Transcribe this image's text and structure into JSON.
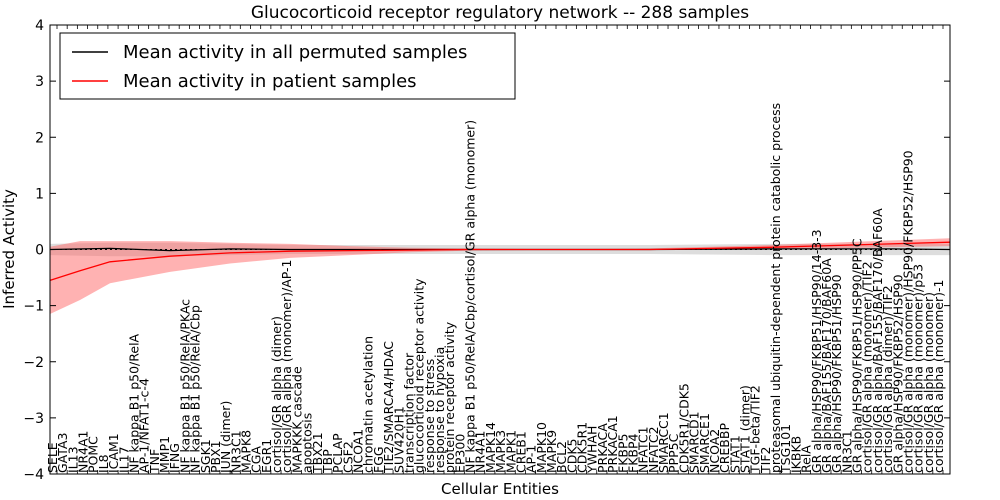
{
  "chart_data": {
    "type": "line",
    "title": "Glucocorticoid receptor regulatory network -- 288 samples",
    "xlabel": "Cellular Entities",
    "ylabel": "Inferred Activity",
    "ylim": [
      -4,
      4
    ],
    "yticks": [
      -4,
      -3,
      -2,
      -1,
      0,
      1,
      2,
      3,
      4
    ],
    "grid": false,
    "legend_position": "top-left",
    "n_points": 151,
    "categories": [
      "SELE",
      "GATA3",
      "IL13",
      "NR4A1",
      "POMC",
      "IL8",
      "ICAM1",
      "IL17",
      "NF kappa B1 p50/RelA",
      "AP-1/NFAT1-c-4",
      "TNF",
      "MMP1",
      "IFNG",
      "NF kappa B1 p50/RelA/PKAc",
      "NF kappa B1 p50/RelA/Cbp",
      "SGK1",
      "PBX1",
      "JUN (dimer)",
      "NR3C1",
      "MAPK8",
      "CGA",
      "EGR1",
      "cortisol/GR alpha (dimer)",
      "cortisol/GR alpha (monomer)/AP-1",
      "MAPKKK cascade",
      "apoptosis",
      "TBX21",
      "TBP",
      "PCLAP",
      "CSF2",
      "NCOA1",
      "chromatin acetylation",
      "FGG",
      "TIE2/SMARCA4/HDAC",
      "SUV420H1",
      "transcription factor",
      "glucocorticoid receptor activity",
      "response to stress",
      "response to hypoxia",
      "protein receptor activity",
      "EP300",
      "NF kappa B1 p50/RelA/Cbp/cortisol/GR alpha (monomer)",
      "NR4A1",
      "MAPK14",
      "MAPK3",
      "MAPK1",
      "CREB1",
      "AP-1",
      "MAPK10",
      "MAPK9",
      "BCL2",
      "CDK5",
      "CDK5R1",
      "YWHAH",
      "PRKACA",
      "PRKACA1",
      "FKBP5",
      "FKBP4",
      "NFATC1",
      "NFATC2",
      "SMARCC1",
      "PPP5C",
      "CDK5R1/CDK5",
      "SMARCD1",
      "SMARCE1",
      "NCOA2",
      "CREBBP",
      "STAT1",
      "STAT1 (dimer)",
      "TGF-beta/TIF2",
      "TIF2",
      "proteasomal ubiquitin-dependent protein catabolic process",
      "TSG101",
      "IKBKB",
      "RelA",
      "GR alpha/HSP90/FKBP51/HSP90/14-3-3",
      "GR alpha/BAF155/BAF170/BAF60A",
      "GR alpha/HSP90/FKBP51/HSP90",
      "NR3C1",
      "GR alpha/HSP90/FKBP51/HSP90/PP5C",
      "cortisol/GR alpha (monomer)/TIF2",
      "cortisol/GR alpha/BAF155/BAF170/BAF60A",
      "cortisol/GR alpha (dimer)/TIF2",
      "GR alpha/HSP90/FKBP52/HSP90",
      "cortisol/GR alpha (monomer)/HSP90/FKBP52/HSP90",
      "cortisol/GR alpha (monomer)/p53",
      "cortisol/GR alpha (monomer)",
      "cortisol/GR alpha (monomer)-1"
    ],
    "series": [
      {
        "name": "Mean activity in all permuted samples",
        "color": "#000000",
        "x": [
          0,
          10,
          20,
          30,
          40,
          60,
          80,
          100,
          120,
          140,
          150
        ],
        "y": [
          0.0,
          0.02,
          -0.02,
          0.01,
          0.0,
          0.0,
          0.0,
          0.0,
          0.01,
          0.01,
          0.0
        ]
      },
      {
        "name": "Mean activity in patient samples",
        "color": "#ff0000",
        "x": [
          0,
          5,
          10,
          20,
          30,
          40,
          50,
          60,
          70,
          80,
          90,
          100,
          110,
          120,
          130,
          140,
          150
        ],
        "y": [
          -0.55,
          -0.38,
          -0.22,
          -0.12,
          -0.06,
          -0.03,
          -0.02,
          -0.01,
          0.0,
          0.0,
          0.0,
          0.0,
          0.02,
          0.04,
          0.07,
          0.1,
          0.13
        ]
      }
    ],
    "bands": [
      {
        "of": "Mean activity in all permuted samples",
        "color": "#bbbbbb",
        "x": [
          0,
          10,
          20,
          30,
          40,
          60,
          80,
          100,
          120,
          140,
          150
        ],
        "lower": [
          -0.1,
          -0.12,
          -0.12,
          -0.1,
          -0.08,
          -0.08,
          -0.08,
          -0.08,
          -0.1,
          -0.1,
          -0.1
        ],
        "upper": [
          0.1,
          0.12,
          0.12,
          0.1,
          0.08,
          0.08,
          0.08,
          0.08,
          0.1,
          0.1,
          0.1
        ]
      },
      {
        "of": "Mean activity in patient samples",
        "color": "#ff6666",
        "x": [
          0,
          5,
          10,
          20,
          30,
          40,
          50,
          60,
          70,
          80,
          90,
          100,
          110,
          120,
          130,
          140,
          150
        ],
        "lower": [
          -1.15,
          -0.9,
          -0.6,
          -0.4,
          -0.25,
          -0.15,
          -0.1,
          -0.05,
          -0.02,
          -0.01,
          -0.01,
          -0.01,
          0.0,
          0.0,
          0.02,
          0.04,
          0.06
        ],
        "upper": [
          0.05,
          0.15,
          0.15,
          0.15,
          0.12,
          0.1,
          0.06,
          0.03,
          0.02,
          0.01,
          0.01,
          0.02,
          0.05,
          0.08,
          0.12,
          0.16,
          0.2
        ]
      }
    ]
  }
}
